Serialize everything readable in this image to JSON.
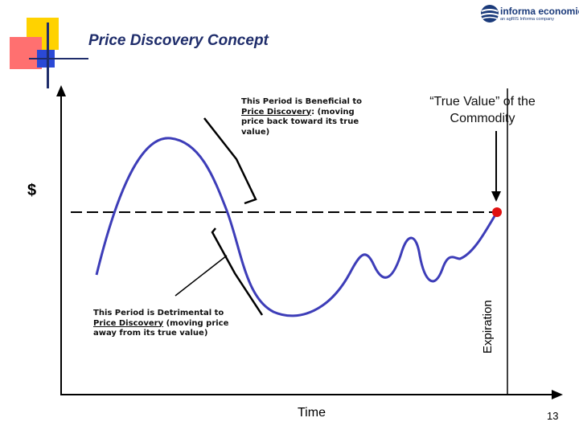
{
  "header": {
    "title": "Price Discovery Concept",
    "logo": {
      "name": "informa economics",
      "tagline": "an agRIS Informa company",
      "icon": "globe-logo-icon",
      "color": "#1a3a7a"
    },
    "decoration_colors": [
      "#ffd200",
      "#ff6a6a",
      "#2b49d6"
    ]
  },
  "diagram": {
    "y_axis_label": "$",
    "x_axis_label": "Time",
    "expiration_label": "Expiration",
    "true_value_label_line1": "“True Value” of the",
    "true_value_label_line2": "Commodity",
    "beneficial_note": {
      "line1": "This Period is Beneficial to",
      "line2_ul": "Price Discovery",
      "line2_rest": ":  (moving",
      "line3": "price back toward its true",
      "line4": "value)"
    },
    "detrimental_note": {
      "line1": "This Period is Detrimental to",
      "line2_ul": "Price Discovery",
      "line2_rest": "  (moving price",
      "line3": "away from its true value)"
    },
    "colors": {
      "price_curve": "#3d3db8",
      "true_value_dot": "#e01010",
      "axis": "#000000"
    }
  },
  "footer": {
    "page_number": "13"
  }
}
